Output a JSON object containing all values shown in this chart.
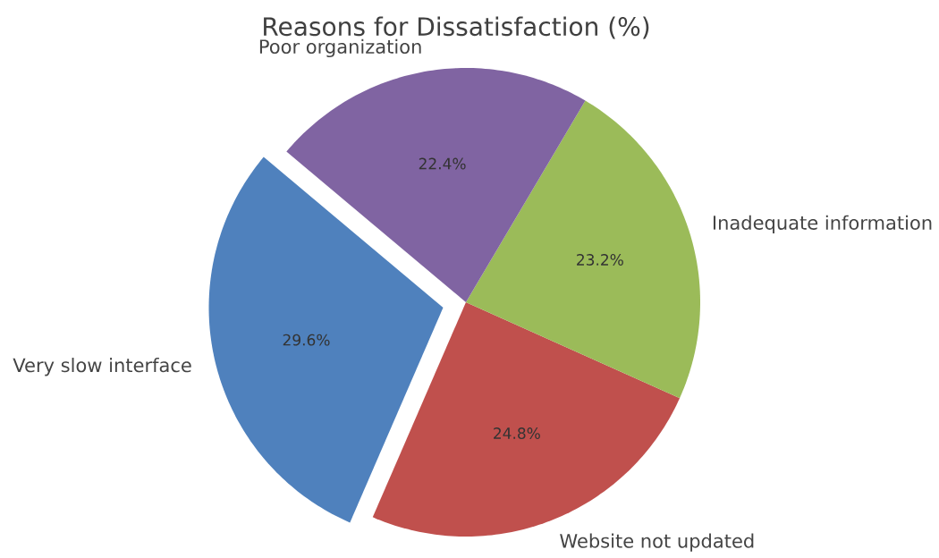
{
  "chart_data": {
    "type": "pie",
    "title": "Reasons for Dissatisfaction (%)",
    "categories": [
      "Very slow interface",
      "Website not updated",
      "Inadequate information",
      "Poor organization"
    ],
    "values": [
      29.6,
      24.8,
      23.2,
      22.4
    ],
    "colors": [
      "#4f81bd",
      "#c0504d",
      "#9bbb59",
      "#8064a2"
    ],
    "value_labels": [
      "29.6%",
      "24.8%",
      "23.2%",
      "22.4%"
    ]
  }
}
